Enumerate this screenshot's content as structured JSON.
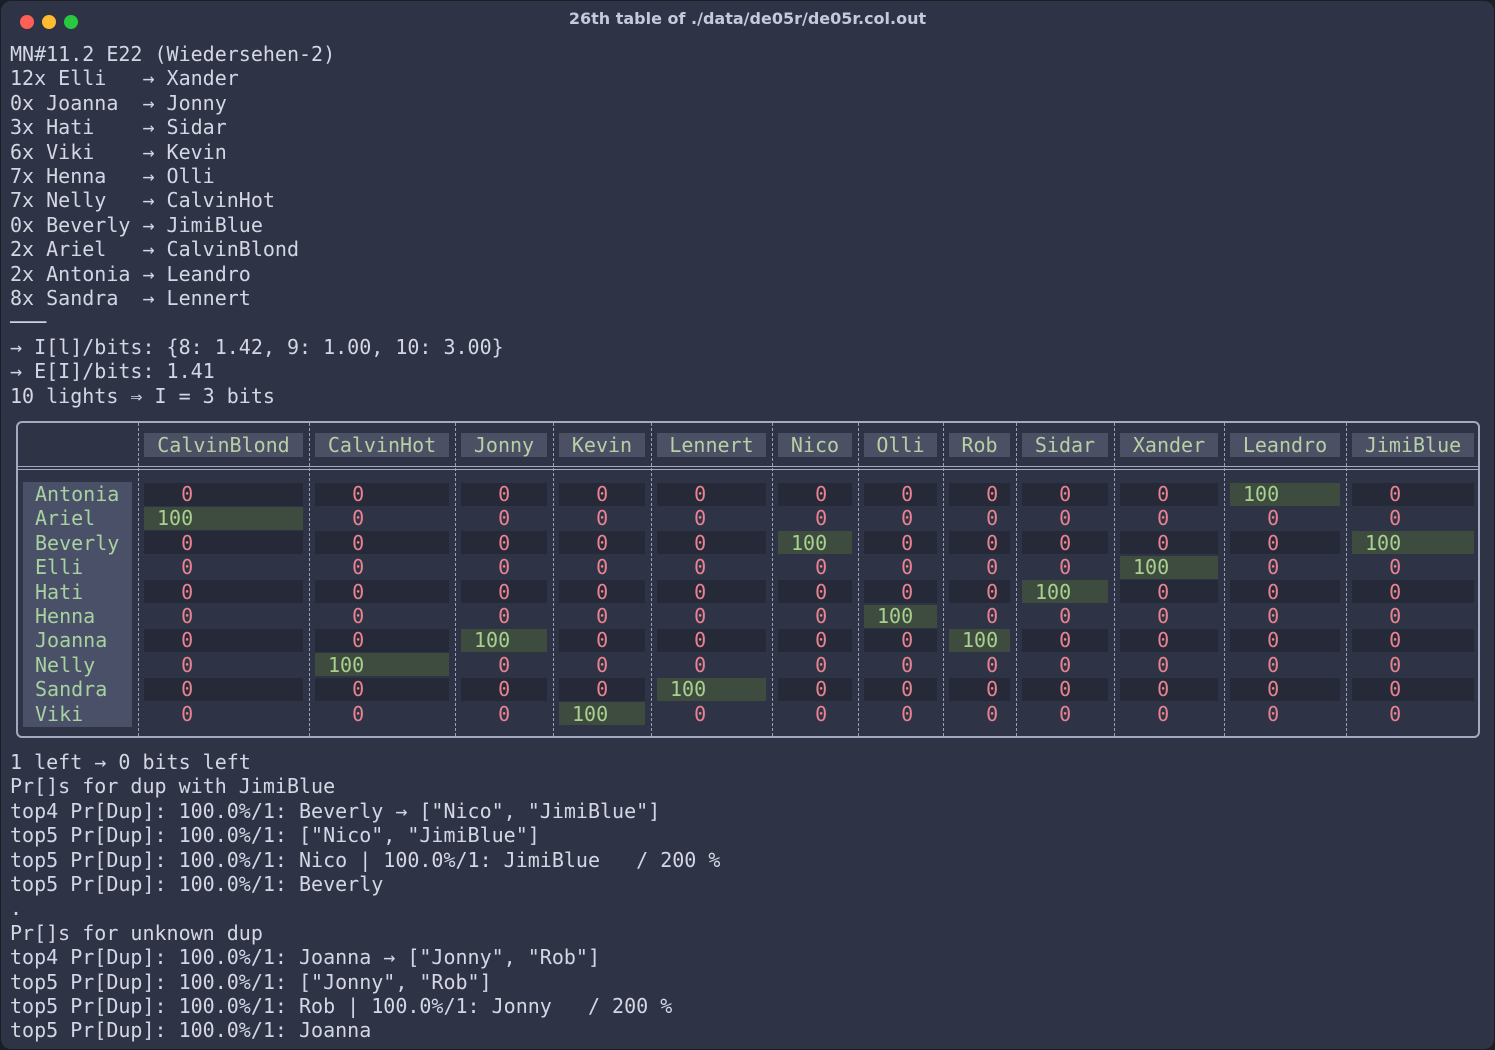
{
  "window": {
    "title": "26th table of ./data/de05r/de05r.col.out"
  },
  "header_lines": [
    "MN#11.2 E22 (Wiedersehen-2)",
    "12x Elli   → Xander",
    "0x Joanna  → Jonny",
    "3x Hati    → Sidar",
    "6x Viki    → Kevin",
    "7x Henna   → Olli",
    "7x Nelly   → CalvinHot",
    "0x Beverly → JimiBlue",
    "2x Ariel   → CalvinBlond",
    "2x Antonia → Leandro",
    "8x Sandra  → Lennert",
    "───",
    "→ I[l]/bits: {8: 1.42, 9: 1.00, 10: 3.00}",
    "→ E[I]/bits: 1.41",
    "10 lights ⇒ I = 3 bits"
  ],
  "table": {
    "columns": [
      "CalvinBlond",
      "CalvinHot",
      "Jonny",
      "Kevin",
      "Lennert",
      "Nico",
      "Olli",
      "Rob",
      "Sidar",
      "Xander",
      "Leandro",
      "JimiBlue"
    ],
    "rows": [
      {
        "name": "Antonia",
        "values": [
          0,
          0,
          0,
          0,
          0,
          0,
          0,
          0,
          0,
          0,
          100,
          0
        ]
      },
      {
        "name": "Ariel",
        "values": [
          100,
          0,
          0,
          0,
          0,
          0,
          0,
          0,
          0,
          0,
          0,
          0
        ]
      },
      {
        "name": "Beverly",
        "values": [
          0,
          0,
          0,
          0,
          0,
          100,
          0,
          0,
          0,
          0,
          0,
          100
        ]
      },
      {
        "name": "Elli",
        "values": [
          0,
          0,
          0,
          0,
          0,
          0,
          0,
          0,
          0,
          100,
          0,
          0
        ]
      },
      {
        "name": "Hati",
        "values": [
          0,
          0,
          0,
          0,
          0,
          0,
          0,
          0,
          100,
          0,
          0,
          0
        ]
      },
      {
        "name": "Henna",
        "values": [
          0,
          0,
          0,
          0,
          0,
          0,
          100,
          0,
          0,
          0,
          0,
          0
        ]
      },
      {
        "name": "Joanna",
        "values": [
          0,
          0,
          100,
          0,
          0,
          0,
          0,
          100,
          0,
          0,
          0,
          0
        ]
      },
      {
        "name": "Nelly",
        "values": [
          0,
          100,
          0,
          0,
          0,
          0,
          0,
          0,
          0,
          0,
          0,
          0
        ]
      },
      {
        "name": "Sandra",
        "values": [
          0,
          0,
          0,
          0,
          100,
          0,
          0,
          0,
          0,
          0,
          0,
          0
        ]
      },
      {
        "name": "Viki",
        "values": [
          0,
          0,
          0,
          100,
          0,
          0,
          0,
          0,
          0,
          0,
          0,
          0
        ]
      }
    ]
  },
  "footer_lines": [
    "1 left → 0 bits left",
    "Pr[]s for dup with JimiBlue",
    "top4 Pr[Dup]: 100.0%/1: Beverly → [\"Nico\", \"JimiBlue\"]",
    "top5 Pr[Dup]: 100.0%/1: [\"Nico\", \"JimiBlue\"]",
    "top5 Pr[Dup]: 100.0%/1: Nico | 100.0%/1: JimiBlue   / 200 %",
    "top5 Pr[Dup]: 100.0%/1: Beverly",
    ".",
    "Pr[]s for unknown dup",
    "top4 Pr[Dup]: 100.0%/1: Joanna → [\"Jonny\", \"Rob\"]",
    "top5 Pr[Dup]: 100.0%/1: [\"Jonny\", \"Rob\"]",
    "top5 Pr[Dup]: 100.0%/1: Rob | 100.0%/1: Jonny   / 200 %",
    "top5 Pr[Dup]: 100.0%/1: Joanna"
  ]
}
